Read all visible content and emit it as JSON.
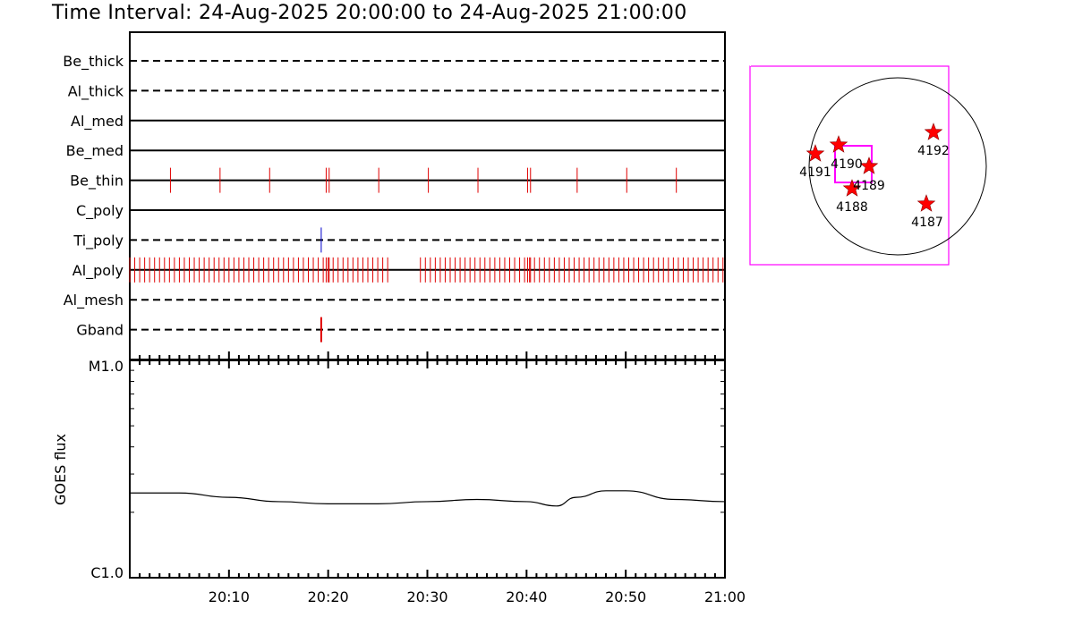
{
  "title": "Time Interval: 24-Aug-2025 20:00:00 to 24-Aug-2025 21:00:00",
  "chart_data": [
    {
      "type": "event-timeline",
      "time_range": [
        "20:00",
        "21:00"
      ],
      "rows": [
        {
          "label": "Be_thick",
          "style": "dashed",
          "events": []
        },
        {
          "label": "Al_thick",
          "style": "dashed",
          "events": []
        },
        {
          "label": "Al_med",
          "style": "solid",
          "events": []
        },
        {
          "label": "Be_med",
          "style": "solid",
          "events": []
        },
        {
          "label": "Be_thin",
          "style": "solid",
          "color": "#e00000",
          "events": [
            4.1,
            9.1,
            14.1,
            19.8,
            20.1,
            25.1,
            30.1,
            35.1,
            40.1,
            40.4,
            45.1,
            50.1,
            55.1
          ]
        },
        {
          "label": "C_poly",
          "style": "solid",
          "events": []
        },
        {
          "label": "Ti_poly",
          "style": "dashed",
          "color": "#0000cc",
          "events": [
            19.3
          ]
        },
        {
          "label": "Al_poly",
          "style": "solid",
          "color": "#e00000",
          "event_spans": [
            [
              0,
              26.2
            ],
            [
              29.3,
              60
            ]
          ],
          "cadence_min": 0.5,
          "extra_events": [
            19.8,
            20.1,
            40.1,
            40.4
          ]
        },
        {
          "label": "Al_mesh",
          "style": "dashed",
          "events": []
        },
        {
          "label": "Gband",
          "style": "dashed",
          "color": "#e00000",
          "events": [
            19.3
          ]
        }
      ]
    },
    {
      "type": "line",
      "ylabel": "GOES flux",
      "y_scale": "log",
      "ylim_labels": [
        "C1.0",
        "M1.0"
      ],
      "x_ticks": [
        "20:10",
        "20:20",
        "20:30",
        "20:40",
        "20:50",
        "21:00"
      ],
      "x_minutes": [
        0,
        5,
        10,
        15,
        20,
        25,
        30,
        35,
        40,
        43,
        45,
        48,
        50,
        55,
        60
      ],
      "values_frac": [
        0.39,
        0.39,
        0.37,
        0.35,
        0.34,
        0.34,
        0.35,
        0.36,
        0.35,
        0.33,
        0.37,
        0.4,
        0.4,
        0.36,
        0.35
      ]
    }
  ],
  "solar_map": {
    "active_regions": [
      "4187",
      "4188",
      "4189",
      "4190",
      "4191",
      "4192"
    ],
    "box_color": "#ff00ff",
    "star_color": "#ff0000"
  }
}
